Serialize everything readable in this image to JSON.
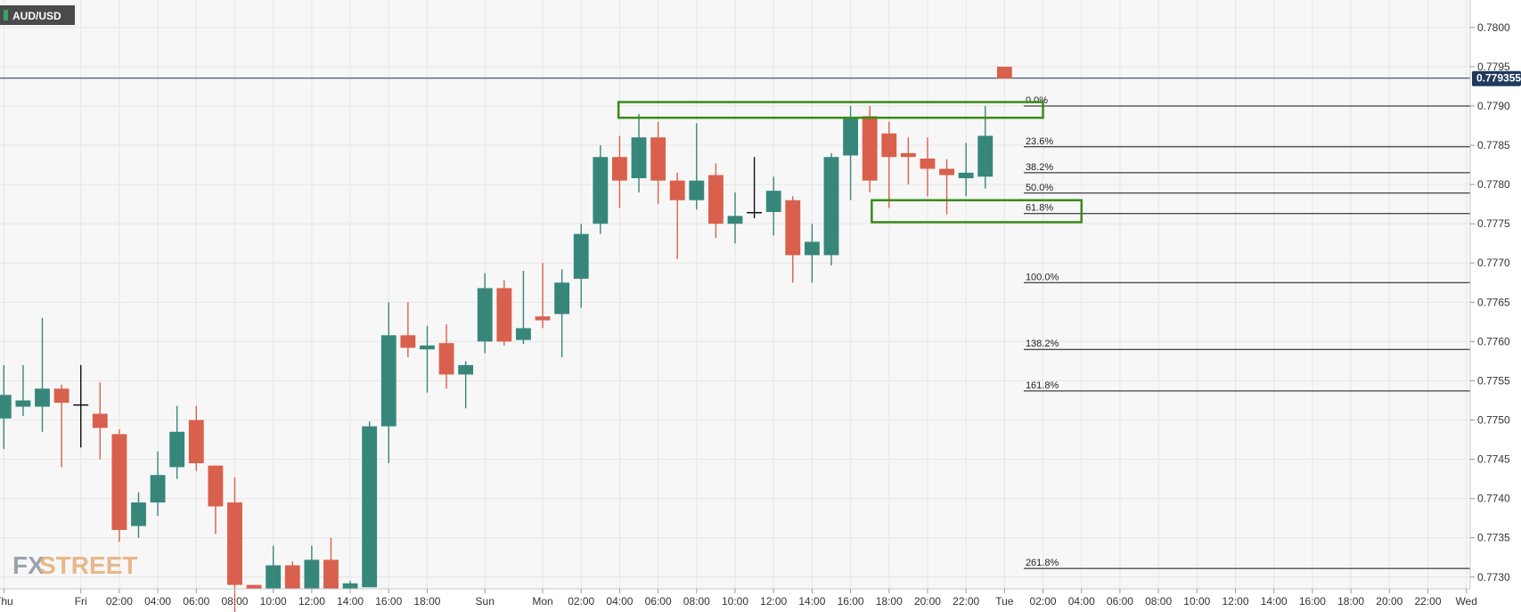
{
  "symbol": "AUD/USD",
  "logo": {
    "text_fx": "FX",
    "text_street": "STREET"
  },
  "colors": {
    "bull": "#36877a",
    "bear": "#d9604c",
    "box": "#3a8a1c",
    "price_line": "#1f2f4f",
    "price_tag": "#1f3a5c",
    "grid": "#e6e6e6",
    "plot_bg": "#f7f7f7"
  },
  "current_price_label": "0.779355",
  "chart_data": {
    "type": "candlestick",
    "symbol": "AUD/USD",
    "grid": true,
    "y_axis": {
      "position": "right",
      "range": [
        0.77285,
        0.78035
      ],
      "ticks": [
        "0.7800",
        "0.7795",
        "0.7790",
        "0.7785",
        "0.7780",
        "0.7775",
        "0.7770",
        "0.7765",
        "0.7760",
        "0.7755",
        "0.7750",
        "0.7745",
        "0.7740",
        "0.7735",
        "0.7730"
      ]
    },
    "x_axis": {
      "range": [
        -0.1,
        38.1
      ],
      "ticks": [
        {
          "pos": 0,
          "label": "Thu"
        },
        {
          "pos": 2,
          "label": "Fri"
        },
        {
          "pos": 3,
          "label": "02:00"
        },
        {
          "pos": 4,
          "label": "04:00"
        },
        {
          "pos": 5,
          "label": "06:00"
        },
        {
          "pos": 6,
          "label": "08:00"
        },
        {
          "pos": 7,
          "label": "10:00"
        },
        {
          "pos": 8,
          "label": "12:00"
        },
        {
          "pos": 9,
          "label": "14:00"
        },
        {
          "pos": 10,
          "label": "16:00"
        },
        {
          "pos": 11,
          "label": "18:00"
        },
        {
          "pos": 12.5,
          "label": "Sun"
        },
        {
          "pos": 14,
          "label": "Mon"
        },
        {
          "pos": 15,
          "label": "02:00"
        },
        {
          "pos": 16,
          "label": "04:00"
        },
        {
          "pos": 17,
          "label": "06:00"
        },
        {
          "pos": 18,
          "label": "08:00"
        },
        {
          "pos": 19,
          "label": "10:00"
        },
        {
          "pos": 20,
          "label": "12:00"
        },
        {
          "pos": 21,
          "label": "14:00"
        },
        {
          "pos": 22,
          "label": "16:00"
        },
        {
          "pos": 23,
          "label": "18:00"
        },
        {
          "pos": 24,
          "label": "20:00"
        },
        {
          "pos": 25,
          "label": "22:00"
        },
        {
          "pos": 26,
          "label": "Tue"
        },
        {
          "pos": 27,
          "label": "02:00"
        },
        {
          "pos": 28,
          "label": "04:00"
        },
        {
          "pos": 29,
          "label": "06:00"
        },
        {
          "pos": 30,
          "label": "08:00"
        },
        {
          "pos": 31,
          "label": "10:00"
        },
        {
          "pos": 32,
          "label": "12:00"
        },
        {
          "pos": 33,
          "label": "14:00"
        },
        {
          "pos": 34,
          "label": "16:00"
        },
        {
          "pos": 35,
          "label": "18:00"
        },
        {
          "pos": 36,
          "label": "20:00"
        },
        {
          "pos": 37,
          "label": "22:00"
        },
        {
          "pos": 38,
          "label": "Wed"
        }
      ]
    },
    "candles": [
      {
        "t": 0.0,
        "o": 0.77502,
        "h": 0.7757,
        "l": 0.77463,
        "c": 0.77532
      },
      {
        "t": 0.5,
        "o": 0.77517,
        "h": 0.7757,
        "l": 0.77505,
        "c": 0.77525
      },
      {
        "t": 1.0,
        "o": 0.77517,
        "h": 0.7763,
        "l": 0.77485,
        "c": 0.7754
      },
      {
        "t": 1.5,
        "o": 0.7754,
        "h": 0.77545,
        "l": 0.7744,
        "c": 0.77522
      },
      {
        "t": 2.0,
        "o": 0.7752,
        "h": 0.7757,
        "l": 0.77465,
        "c": 0.7752
      },
      {
        "t": 2.5,
        "o": 0.77508,
        "h": 0.77548,
        "l": 0.7745,
        "c": 0.7749
      },
      {
        "t": 3.0,
        "o": 0.77482,
        "h": 0.77488,
        "l": 0.77345,
        "c": 0.7736
      },
      {
        "t": 3.5,
        "o": 0.77365,
        "h": 0.77408,
        "l": 0.7735,
        "c": 0.77395
      },
      {
        "t": 4.0,
        "o": 0.77395,
        "h": 0.7746,
        "l": 0.77378,
        "c": 0.7743
      },
      {
        "t": 4.5,
        "o": 0.7744,
        "h": 0.77518,
        "l": 0.77425,
        "c": 0.77485
      },
      {
        "t": 5.0,
        "o": 0.775,
        "h": 0.77518,
        "l": 0.77435,
        "c": 0.77445
      },
      {
        "t": 5.5,
        "o": 0.77442,
        "h": 0.77442,
        "l": 0.77355,
        "c": 0.7739
      },
      {
        "t": 6.0,
        "o": 0.77395,
        "h": 0.77427,
        "l": 0.7724,
        "c": 0.7729
      },
      {
        "t": 6.5,
        "o": 0.7729,
        "h": 0.7729,
        "l": 0.77285,
        "c": 0.77285
      },
      {
        "t": 7.0,
        "o": 0.77285,
        "h": 0.7734,
        "l": 0.77285,
        "c": 0.77315
      },
      {
        "t": 7.5,
        "o": 0.77315,
        "h": 0.7732,
        "l": 0.77285,
        "c": 0.77285
      },
      {
        "t": 8.0,
        "o": 0.77285,
        "h": 0.7734,
        "l": 0.77285,
        "c": 0.77322
      },
      {
        "t": 8.5,
        "o": 0.77322,
        "h": 0.7735,
        "l": 0.77285,
        "c": 0.77285
      },
      {
        "t": 9.0,
        "o": 0.77285,
        "h": 0.77295,
        "l": 0.77285,
        "c": 0.77292
      },
      {
        "t": 9.5,
        "o": 0.77287,
        "h": 0.77498,
        "l": 0.77287,
        "c": 0.77492
      },
      {
        "t": 10.0,
        "o": 0.77492,
        "h": 0.7765,
        "l": 0.77445,
        "c": 0.77608
      },
      {
        "t": 10.5,
        "o": 0.77608,
        "h": 0.7765,
        "l": 0.7758,
        "c": 0.77592
      },
      {
        "t": 11.0,
        "o": 0.7759,
        "h": 0.7762,
        "l": 0.77535,
        "c": 0.77595
      },
      {
        "t": 11.5,
        "o": 0.77598,
        "h": 0.77622,
        "l": 0.7754,
        "c": 0.77558
      },
      {
        "t": 12.0,
        "o": 0.77558,
        "h": 0.77575,
        "l": 0.77515,
        "c": 0.7757
      },
      {
        "t": 12.5,
        "o": 0.776,
        "h": 0.77687,
        "l": 0.77585,
        "c": 0.77668
      },
      {
        "t": 13.0,
        "o": 0.77668,
        "h": 0.77678,
        "l": 0.77595,
        "c": 0.776
      },
      {
        "t": 13.5,
        "o": 0.77602,
        "h": 0.7769,
        "l": 0.77597,
        "c": 0.77617
      },
      {
        "t": 14.0,
        "o": 0.77632,
        "h": 0.777,
        "l": 0.77617,
        "c": 0.77627
      },
      {
        "t": 14.5,
        "o": 0.77635,
        "h": 0.77692,
        "l": 0.7758,
        "c": 0.77675
      },
      {
        "t": 15.0,
        "o": 0.7768,
        "h": 0.7775,
        "l": 0.77643,
        "c": 0.77737
      },
      {
        "t": 15.5,
        "o": 0.7775,
        "h": 0.7785,
        "l": 0.77737,
        "c": 0.77835
      },
      {
        "t": 16.0,
        "o": 0.77835,
        "h": 0.77862,
        "l": 0.7777,
        "c": 0.77805
      },
      {
        "t": 16.5,
        "o": 0.77808,
        "h": 0.7789,
        "l": 0.7779,
        "c": 0.7786
      },
      {
        "t": 17.0,
        "o": 0.7786,
        "h": 0.7788,
        "l": 0.77775,
        "c": 0.77805
      },
      {
        "t": 17.5,
        "o": 0.77805,
        "h": 0.77815,
        "l": 0.77705,
        "c": 0.7778
      },
      {
        "t": 18.0,
        "o": 0.7778,
        "h": 0.77878,
        "l": 0.77768,
        "c": 0.77805
      },
      {
        "t": 18.5,
        "o": 0.77812,
        "h": 0.77827,
        "l": 0.77732,
        "c": 0.7775
      },
      {
        "t": 19.0,
        "o": 0.7775,
        "h": 0.7779,
        "l": 0.77725,
        "c": 0.7776
      },
      {
        "t": 19.5,
        "o": 0.77765,
        "h": 0.77835,
        "l": 0.77757,
        "c": 0.77765
      },
      {
        "t": 20.0,
        "o": 0.77765,
        "h": 0.7781,
        "l": 0.77735,
        "c": 0.77792
      },
      {
        "t": 20.5,
        "o": 0.7778,
        "h": 0.77785,
        "l": 0.77675,
        "c": 0.7771
      },
      {
        "t": 21.0,
        "o": 0.7771,
        "h": 0.7775,
        "l": 0.77675,
        "c": 0.77727
      },
      {
        "t": 21.5,
        "o": 0.7771,
        "h": 0.7784,
        "l": 0.77697,
        "c": 0.77835
      },
      {
        "t": 22.0,
        "o": 0.77837,
        "h": 0.779,
        "l": 0.7778,
        "c": 0.77885
      },
      {
        "t": 22.5,
        "o": 0.77887,
        "h": 0.779,
        "l": 0.7779,
        "c": 0.77805
      },
      {
        "t": 23.0,
        "o": 0.77865,
        "h": 0.7788,
        "l": 0.7777,
        "c": 0.77835
      },
      {
        "t": 23.5,
        "o": 0.7784,
        "h": 0.7786,
        "l": 0.778,
        "c": 0.77835
      },
      {
        "t": 24.0,
        "o": 0.77833,
        "h": 0.7786,
        "l": 0.77785,
        "c": 0.7782
      },
      {
        "t": 24.5,
        "o": 0.7782,
        "h": 0.77832,
        "l": 0.77762,
        "c": 0.77812
      },
      {
        "t": 25.0,
        "o": 0.77808,
        "h": 0.77853,
        "l": 0.77785,
        "c": 0.77815
      },
      {
        "t": 25.5,
        "o": 0.7781,
        "h": 0.779,
        "l": 0.77795,
        "c": 0.77862
      },
      {
        "t": 26.0,
        "o": 0.7795,
        "h": 0.7795,
        "l": 0.77935,
        "c": 0.77935
      }
    ],
    "current_price": 0.779355,
    "fibonacci": {
      "x_start": 26.5,
      "levels": [
        {
          "label": "0.0%",
          "price": 0.779
        },
        {
          "label": "23.6%",
          "price": 0.77848
        },
        {
          "label": "38.2%",
          "price": 0.77815
        },
        {
          "label": "50.0%",
          "price": 0.77789
        },
        {
          "label": "61.8%",
          "price": 0.77763
        },
        {
          "label": "100.0%",
          "price": 0.77675
        },
        {
          "label": "138.2%",
          "price": 0.7759
        },
        {
          "label": "161.8%",
          "price": 0.77537
        },
        {
          "label": "261.8%",
          "price": 0.77311
        }
      ]
    },
    "annotation_boxes": [
      {
        "x0": 15.97,
        "x1": 27.0,
        "y_top": 0.77905,
        "y_bottom": 0.77885
      },
      {
        "x0": 22.55,
        "x1": 28.0,
        "y_top": 0.7778,
        "y_bottom": 0.77752
      }
    ]
  }
}
